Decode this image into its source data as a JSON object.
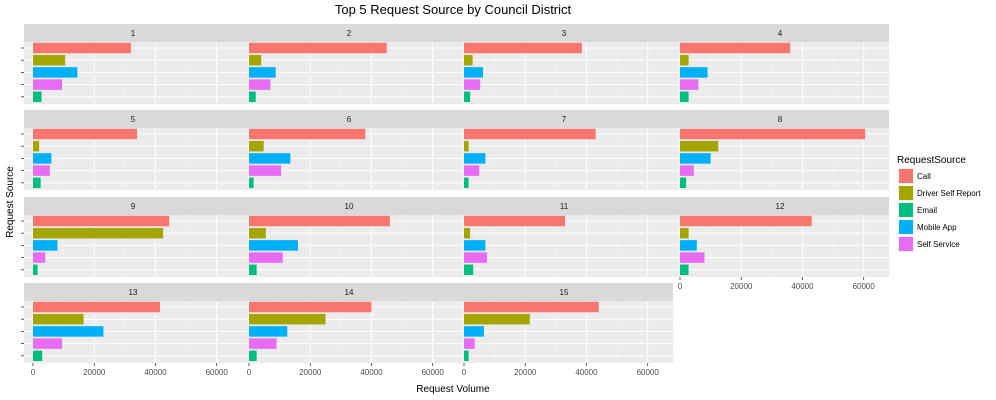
{
  "chart_data": {
    "type": "bar",
    "orientation": "horizontal",
    "title": "Top 5 Request Source by Council District",
    "xlabel": "Request Volume",
    "ylabel": "Request Source",
    "xlim": [
      0,
      65000
    ],
    "xticks": [
      0,
      20000,
      40000,
      60000
    ],
    "xtick_labels": [
      "0",
      "20000",
      "40000",
      "60000"
    ],
    "grid": true,
    "legend": {
      "title": "RequestSource",
      "position": "right",
      "entries": [
        "Call",
        "Driver Self Report",
        "Email",
        "Mobile App",
        "Self Service"
      ]
    },
    "colors": {
      "Call": "#F8766D",
      "Driver Self Report": "#A3A500",
      "Email": "#00BF7D",
      "Mobile App": "#00B0F6",
      "Self Service": "#E76BF3"
    },
    "facets": [
      {
        "district": "1",
        "values": {
          "Call": 32000,
          "Driver Self Report": 10500,
          "Mobile App": 14500,
          "Self Service": 9500,
          "Email": 2800
        }
      },
      {
        "district": "2",
        "values": {
          "Call": 45000,
          "Driver Self Report": 4000,
          "Mobile App": 8700,
          "Self Service": 7000,
          "Email": 2200
        }
      },
      {
        "district": "3",
        "values": {
          "Call": 38500,
          "Driver Self Report": 2800,
          "Mobile App": 6200,
          "Self Service": 5300,
          "Email": 2000
        }
      },
      {
        "district": "4",
        "values": {
          "Call": 36000,
          "Driver Self Report": 2800,
          "Mobile App": 9000,
          "Self Service": 6000,
          "Email": 2800
        }
      },
      {
        "district": "5",
        "values": {
          "Call": 34000,
          "Driver Self Report": 2000,
          "Mobile App": 6000,
          "Self Service": 5500,
          "Email": 2500
        }
      },
      {
        "district": "6",
        "values": {
          "Call": 38000,
          "Driver Self Report": 4800,
          "Mobile App": 13500,
          "Self Service": 10500,
          "Email": 1500
        }
      },
      {
        "district": "7",
        "values": {
          "Call": 43000,
          "Driver Self Report": 1500,
          "Mobile App": 7000,
          "Self Service": 5000,
          "Email": 1500
        }
      },
      {
        "district": "8",
        "values": {
          "Call": 60500,
          "Driver Self Report": 12500,
          "Mobile App": 10000,
          "Self Service": 4500,
          "Email": 2000
        }
      },
      {
        "district": "9",
        "values": {
          "Call": 44500,
          "Driver Self Report": 42500,
          "Mobile App": 8000,
          "Self Service": 4000,
          "Email": 1500
        }
      },
      {
        "district": "10",
        "values": {
          "Call": 46000,
          "Driver Self Report": 5500,
          "Mobile App": 16000,
          "Self Service": 11000,
          "Email": 2500
        }
      },
      {
        "district": "11",
        "values": {
          "Call": 33000,
          "Driver Self Report": 2000,
          "Mobile App": 7000,
          "Self Service": 7500,
          "Email": 3000
        }
      },
      {
        "district": "12",
        "values": {
          "Call": 43000,
          "Driver Self Report": 2800,
          "Mobile App": 5500,
          "Self Service": 8000,
          "Email": 2800
        }
      },
      {
        "district": "13",
        "values": {
          "Call": 41500,
          "Driver Self Report": 16500,
          "Mobile App": 23000,
          "Self Service": 9500,
          "Email": 3000
        }
      },
      {
        "district": "14",
        "values": {
          "Call": 40000,
          "Driver Self Report": 25000,
          "Mobile App": 12500,
          "Self Service": 9000,
          "Email": 2500
        }
      },
      {
        "district": "15",
        "values": {
          "Call": 44000,
          "Driver Self Report": 21500,
          "Mobile App": 6500,
          "Self Service": 3500,
          "Email": 1500
        }
      }
    ]
  }
}
